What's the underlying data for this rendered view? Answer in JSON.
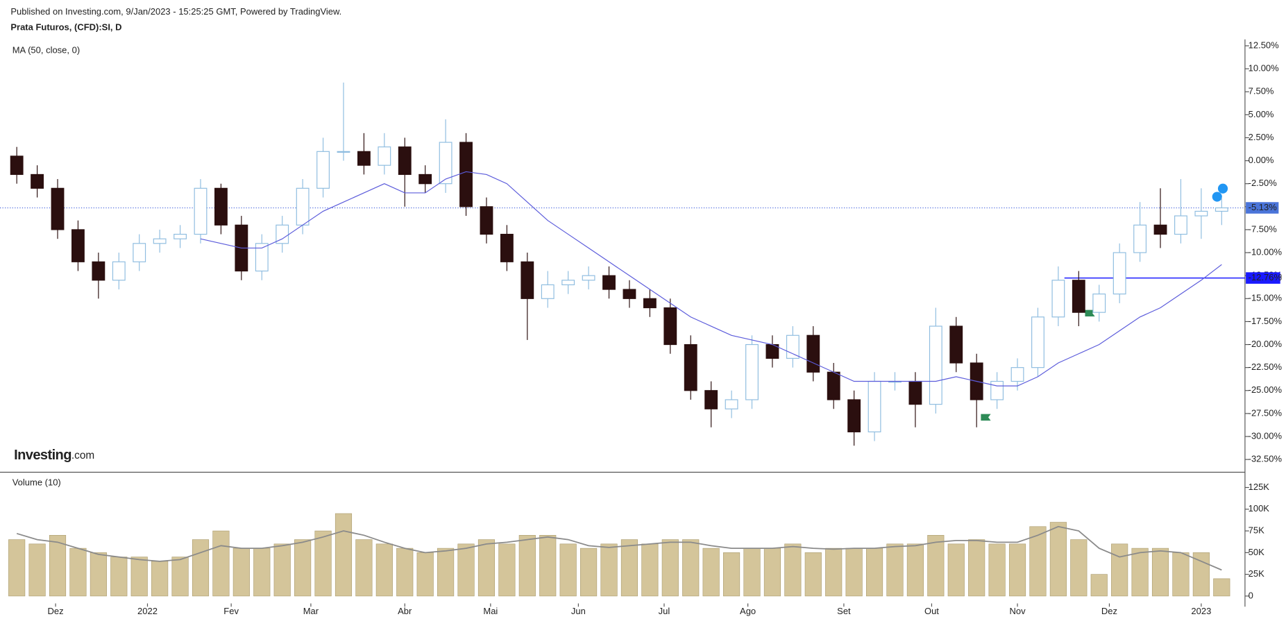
{
  "header": {
    "published": "Published on Investing.com, 9/Jan/2023 - 15:25:25 GMT, Powered by TradingView.",
    "logo": [
      "Investing",
      ".com"
    ]
  },
  "chart_data": [
    {
      "type": "candlestick",
      "title": "Prata Futuros, (CFD):SI, D",
      "indicator": "MA (50, close, 0)",
      "up_color": "#8fbde0",
      "down_color": "#2b0f0f",
      "ma_color": "#5b5bdb",
      "open": [
        0.5,
        -1.5,
        -3,
        -7.5,
        -11,
        -13,
        -11,
        -9,
        -8.5,
        -8,
        -3,
        -7,
        -12,
        -9,
        -7,
        -3,
        1,
        1,
        -0.5,
        1.5,
        -1.5,
        -2.5,
        2,
        -5,
        -8,
        -11,
        -15,
        -13.5,
        -13,
        -12.5,
        -14,
        -15,
        -16,
        -20,
        -25,
        -27,
        -26,
        -20,
        -21.5,
        -19,
        -23,
        -26,
        -29.5,
        -24,
        -24,
        -26.5,
        -18,
        -22,
        -26,
        -24,
        -22.5,
        -17,
        -13,
        -16.5,
        -14.5,
        -10,
        -7,
        -8,
        -6,
        -5.5
      ],
      "high": [
        1.5,
        -0.5,
        -2,
        -6.5,
        -10,
        -10,
        -8,
        -7.5,
        -7,
        -2,
        -2.5,
        -6,
        -8,
        -6,
        -2,
        2.5,
        8.5,
        3,
        3,
        2.5,
        -0.5,
        4.5,
        3,
        -4,
        -7,
        -10,
        -12,
        -12,
        -11.5,
        -11.5,
        -13,
        -14,
        -15,
        -19,
        -24,
        -25,
        -19,
        -19,
        -18,
        -18,
        -22,
        -25,
        -23,
        -23,
        -23,
        -16,
        -17,
        -21,
        -23,
        -21.5,
        -16,
        -11.5,
        -12,
        -13.5,
        -9,
        -4.5,
        -3,
        -2,
        -3,
        -4
      ],
      "low": [
        -2.5,
        -4,
        -8.5,
        -12,
        -15,
        -14,
        -12,
        -10,
        -9.5,
        -9,
        -8,
        -13,
        -13,
        -10,
        -8,
        -4,
        0,
        -1.5,
        -1.5,
        -5,
        -3.5,
        -3.5,
        -6,
        -9,
        -12,
        -19.5,
        -16,
        -14.5,
        -14,
        -15,
        -16,
        -17,
        -21,
        -26,
        -29,
        -28,
        -27,
        -22.5,
        -22.5,
        -24,
        -27,
        -31,
        -30.5,
        -25,
        -29,
        -27.5,
        -23,
        -29,
        -27,
        -25,
        -23.5,
        -18,
        -18,
        -17.5,
        -15.5,
        -11,
        -9.5,
        -9,
        -8.5,
        -7
      ],
      "close": [
        -1.5,
        -3,
        -7.5,
        -11,
        -13,
        -11,
        -9,
        -8.5,
        -8,
        -3,
        -7,
        -12,
        -9,
        -7,
        -3,
        1,
        1,
        -0.5,
        1.5,
        -1.5,
        -2.5,
        2,
        -5,
        -8,
        -11,
        -15,
        -13.5,
        -13,
        -12.5,
        -14,
        -15,
        -16,
        -20,
        -25,
        -27,
        -26,
        -20,
        -21.5,
        -19,
        -23,
        -26,
        -29.5,
        -24,
        -24,
        -26.5,
        -18,
        -22,
        -26,
        -24,
        -22.5,
        -17,
        -13,
        -16.5,
        -14.5,
        -10,
        -7,
        -8,
        -6,
        -5.5,
        -5.13
      ],
      "ma": [
        null,
        null,
        null,
        null,
        null,
        null,
        null,
        null,
        null,
        -8.5,
        -9,
        -9.5,
        -9.5,
        -8.5,
        -7,
        -5.5,
        -4.5,
        -3.5,
        -2.5,
        -3.5,
        -3.5,
        -2,
        -1.2,
        -1.5,
        -2.5,
        -4.5,
        -6.5,
        -8,
        -9.5,
        -11,
        -12.5,
        -14,
        -15.5,
        -17,
        -18,
        -19,
        -19.5,
        -20,
        -21,
        -22,
        -23,
        -24,
        -24,
        -24,
        -24,
        -24,
        -23.5,
        -24,
        -24.5,
        -24.5,
        -23.5,
        -22,
        -21,
        -20,
        -18.5,
        -17,
        -16,
        -14.5,
        -13,
        -11.3
      ],
      "last": {
        "value": -5.13,
        "label": "-5.13%"
      },
      "level": {
        "value": -12.76,
        "label": "-12.76%"
      },
      "xlim": [
        -0.5,
        59.5
      ],
      "xticks": [
        {
          "value": 1.9,
          "label": "Dez"
        },
        {
          "value": 6.4,
          "label": "2022"
        },
        {
          "value": 10.5,
          "label": "Fev"
        },
        {
          "value": 14.4,
          "label": "Mar"
        },
        {
          "value": 19.0,
          "label": "Abr"
        },
        {
          "value": 23.2,
          "label": "Mai"
        },
        {
          "value": 27.5,
          "label": "Jun"
        },
        {
          "value": 31.7,
          "label": "Jul"
        },
        {
          "value": 35.8,
          "label": "Ago"
        },
        {
          "value": 40.5,
          "label": "Set"
        },
        {
          "value": 44.8,
          "label": "Out"
        },
        {
          "value": 49.0,
          "label": "Nov"
        },
        {
          "value": 53.5,
          "label": "Dez"
        },
        {
          "value": 58.0,
          "label": "2023"
        }
      ],
      "ylim": [
        -33.8,
        13.2
      ],
      "yticks": [
        {
          "value": 12.5,
          "label": "12.50%"
        },
        {
          "value": 10,
          "label": "10.00%"
        },
        {
          "value": 7.5,
          "label": "7.50%"
        },
        {
          "value": 5,
          "label": "5.00%"
        },
        {
          "value": 2.5,
          "label": "2.50%"
        },
        {
          "value": 0,
          "label": "0.00%"
        },
        {
          "value": -2.5,
          "label": "-2.50%"
        },
        {
          "value": -5,
          "label": "-5.00%"
        },
        {
          "value": -7.5,
          "label": "-7.50%"
        },
        {
          "value": -10,
          "label": "-10.00%"
        },
        {
          "value": -12.5,
          "label": "-12.50%"
        },
        {
          "value": -15,
          "label": "-15.00%"
        },
        {
          "value": -17.5,
          "label": "-17.50%"
        },
        {
          "value": -20,
          "label": "-20.00%"
        },
        {
          "value": -22.5,
          "label": "-22.50%"
        },
        {
          "value": -25,
          "label": "-25.00%"
        },
        {
          "value": -27.5,
          "label": "-27.50%"
        },
        {
          "value": -30,
          "label": "-30.00%"
        },
        {
          "value": -32.5,
          "label": "-32.50%"
        }
      ]
    },
    {
      "type": "bar",
      "title": "Volume (10)",
      "color": "#d4c59a",
      "ma_color": "#8a8a8a",
      "values": [
        65000,
        60000,
        70000,
        55000,
        50000,
        45000,
        45000,
        40000,
        45000,
        65000,
        75000,
        55000,
        55000,
        60000,
        65000,
        75000,
        95000,
        65000,
        60000,
        55000,
        50000,
        55000,
        60000,
        65000,
        60000,
        70000,
        70000,
        60000,
        55000,
        60000,
        65000,
        60000,
        65000,
        65000,
        55000,
        50000,
        55000,
        55000,
        60000,
        50000,
        55000,
        55000,
        55000,
        60000,
        60000,
        70000,
        60000,
        65000,
        60000,
        60000,
        80000,
        85000,
        65000,
        25000,
        60000,
        55000,
        55000,
        50000,
        50000,
        20000
      ],
      "ma": [
        72000,
        65000,
        62000,
        55000,
        48000,
        45000,
        42000,
        40000,
        42000,
        50000,
        58000,
        55000,
        55000,
        58000,
        62000,
        68000,
        75000,
        70000,
        62000,
        55000,
        50000,
        52000,
        55000,
        60000,
        62000,
        65000,
        68000,
        65000,
        58000,
        56000,
        58000,
        60000,
        62000,
        62000,
        58000,
        55000,
        55000,
        55000,
        57000,
        55000,
        54000,
        55000,
        55000,
        57000,
        58000,
        62000,
        64000,
        64000,
        62000,
        62000,
        70000,
        80000,
        75000,
        55000,
        45000,
        50000,
        52000,
        50000,
        40000,
        30000
      ],
      "ylim": [
        0,
        135000
      ],
      "yticks": [
        0,
        {
          "value": 25000,
          "label": "25K"
        },
        {
          "value": 50000,
          "label": "50K"
        },
        {
          "value": 75000,
          "label": "75K"
        },
        {
          "value": 100000,
          "label": "100K"
        },
        {
          "value": 125000,
          "label": "125K"
        }
      ]
    }
  ]
}
